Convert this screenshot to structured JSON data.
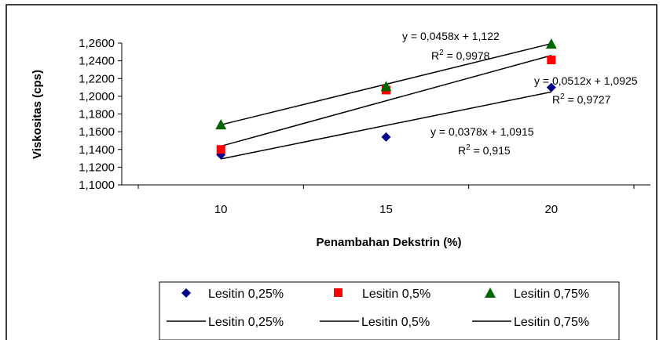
{
  "chart_data": {
    "type": "scatter",
    "xlabel": "Penambahan Dekstrin (%)",
    "ylabel": "Viskositas (cps)",
    "xlim": [
      7,
      23
    ],
    "ylim": [
      1.1,
      1.26
    ],
    "x_ticks": [
      10,
      15,
      20
    ],
    "y_tick_labels": [
      "1,1000",
      "1,1200",
      "1,1400",
      "1,1600",
      "1,1800",
      "1,2000",
      "1,2200",
      "1,2400",
      "1,2600"
    ],
    "x_tick_labels": [
      "10",
      "15",
      "20"
    ],
    "grid": false,
    "legend_position": "bottom",
    "series": [
      {
        "name": "Lesitin 0,25%",
        "marker": "diamond",
        "color": "#00008B",
        "x": [
          10,
          15,
          20
        ],
        "y": [
          1.134,
          1.154,
          1.21
        ]
      },
      {
        "name": "Lesitin 0,5%",
        "marker": "square",
        "color": "#FF0000",
        "x": [
          10,
          15,
          20
        ],
        "y": [
          1.14,
          1.207,
          1.241
        ]
      },
      {
        "name": "Lesitin 0,75%",
        "marker": "triangle",
        "color": "#006400",
        "x": [
          10,
          15,
          20
        ],
        "y": [
          1.168,
          1.211,
          1.259
        ]
      }
    ],
    "trendlines": [
      {
        "name": "Lesitin 0,25%",
        "slope": 0.0378,
        "intercept": 1.0915,
        "equation": "y = 0,0378x + 1,0915",
        "r2_label": "R",
        "r2_value": " = 0,915"
      },
      {
        "name": "Lesitin 0,5%",
        "slope": 0.0512,
        "intercept": 1.0925,
        "equation": "y = 0,0512x + 1,0925",
        "r2_label": "R",
        "r2_value": " = 0,9727"
      },
      {
        "name": "Lesitin 0,75%",
        "slope": 0.0458,
        "intercept": 1.122,
        "equation": "y = 0,0458x + 1,122",
        "r2_label": "R",
        "r2_value": " = 0,9978"
      }
    ]
  }
}
